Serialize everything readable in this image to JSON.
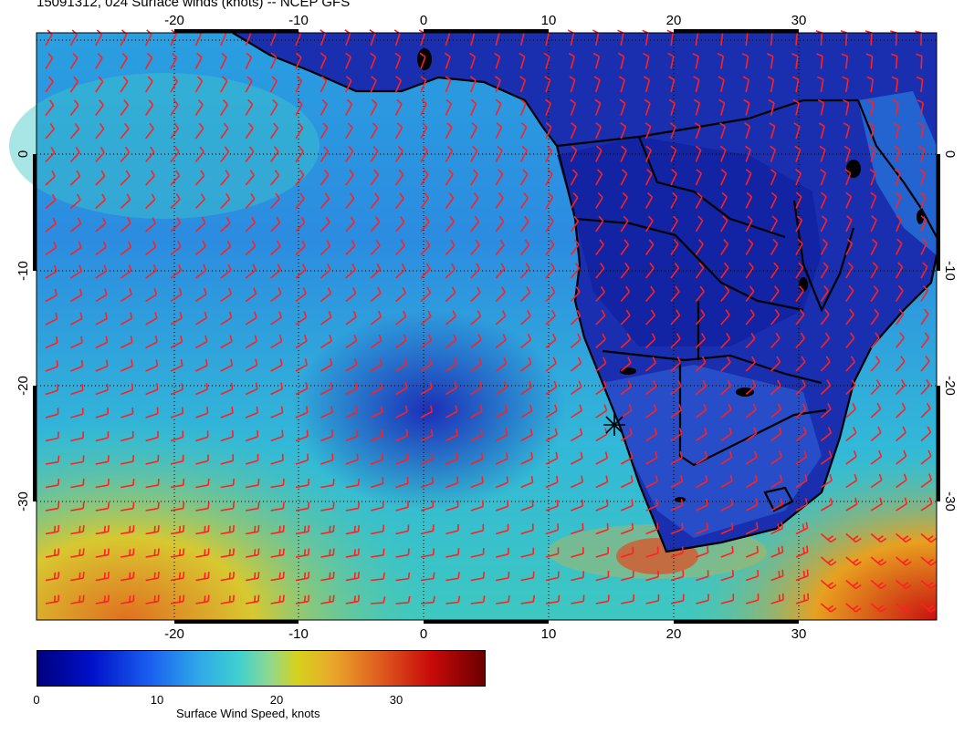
{
  "title": "15091312, 024 Surface winds (knots) -- NCEP GFS",
  "map": {
    "projection": "cylindrical",
    "lon_range": [
      -30,
      42
    ],
    "lat_range": [
      -40,
      10
    ],
    "lon_ticks": [
      "-20",
      "-10",
      "0",
      "10",
      "20",
      "30"
    ],
    "lat_ticks": [
      "0",
      "-10",
      "-20",
      "-30"
    ],
    "barb_color": "#ff2020",
    "coast_color": "#000000",
    "grid_style": "dotted"
  },
  "colorbar": {
    "ticks": [
      "0",
      "10",
      "20",
      "30"
    ],
    "label": "Surface Wind Speed, knots",
    "range": [
      0,
      37
    ]
  }
}
